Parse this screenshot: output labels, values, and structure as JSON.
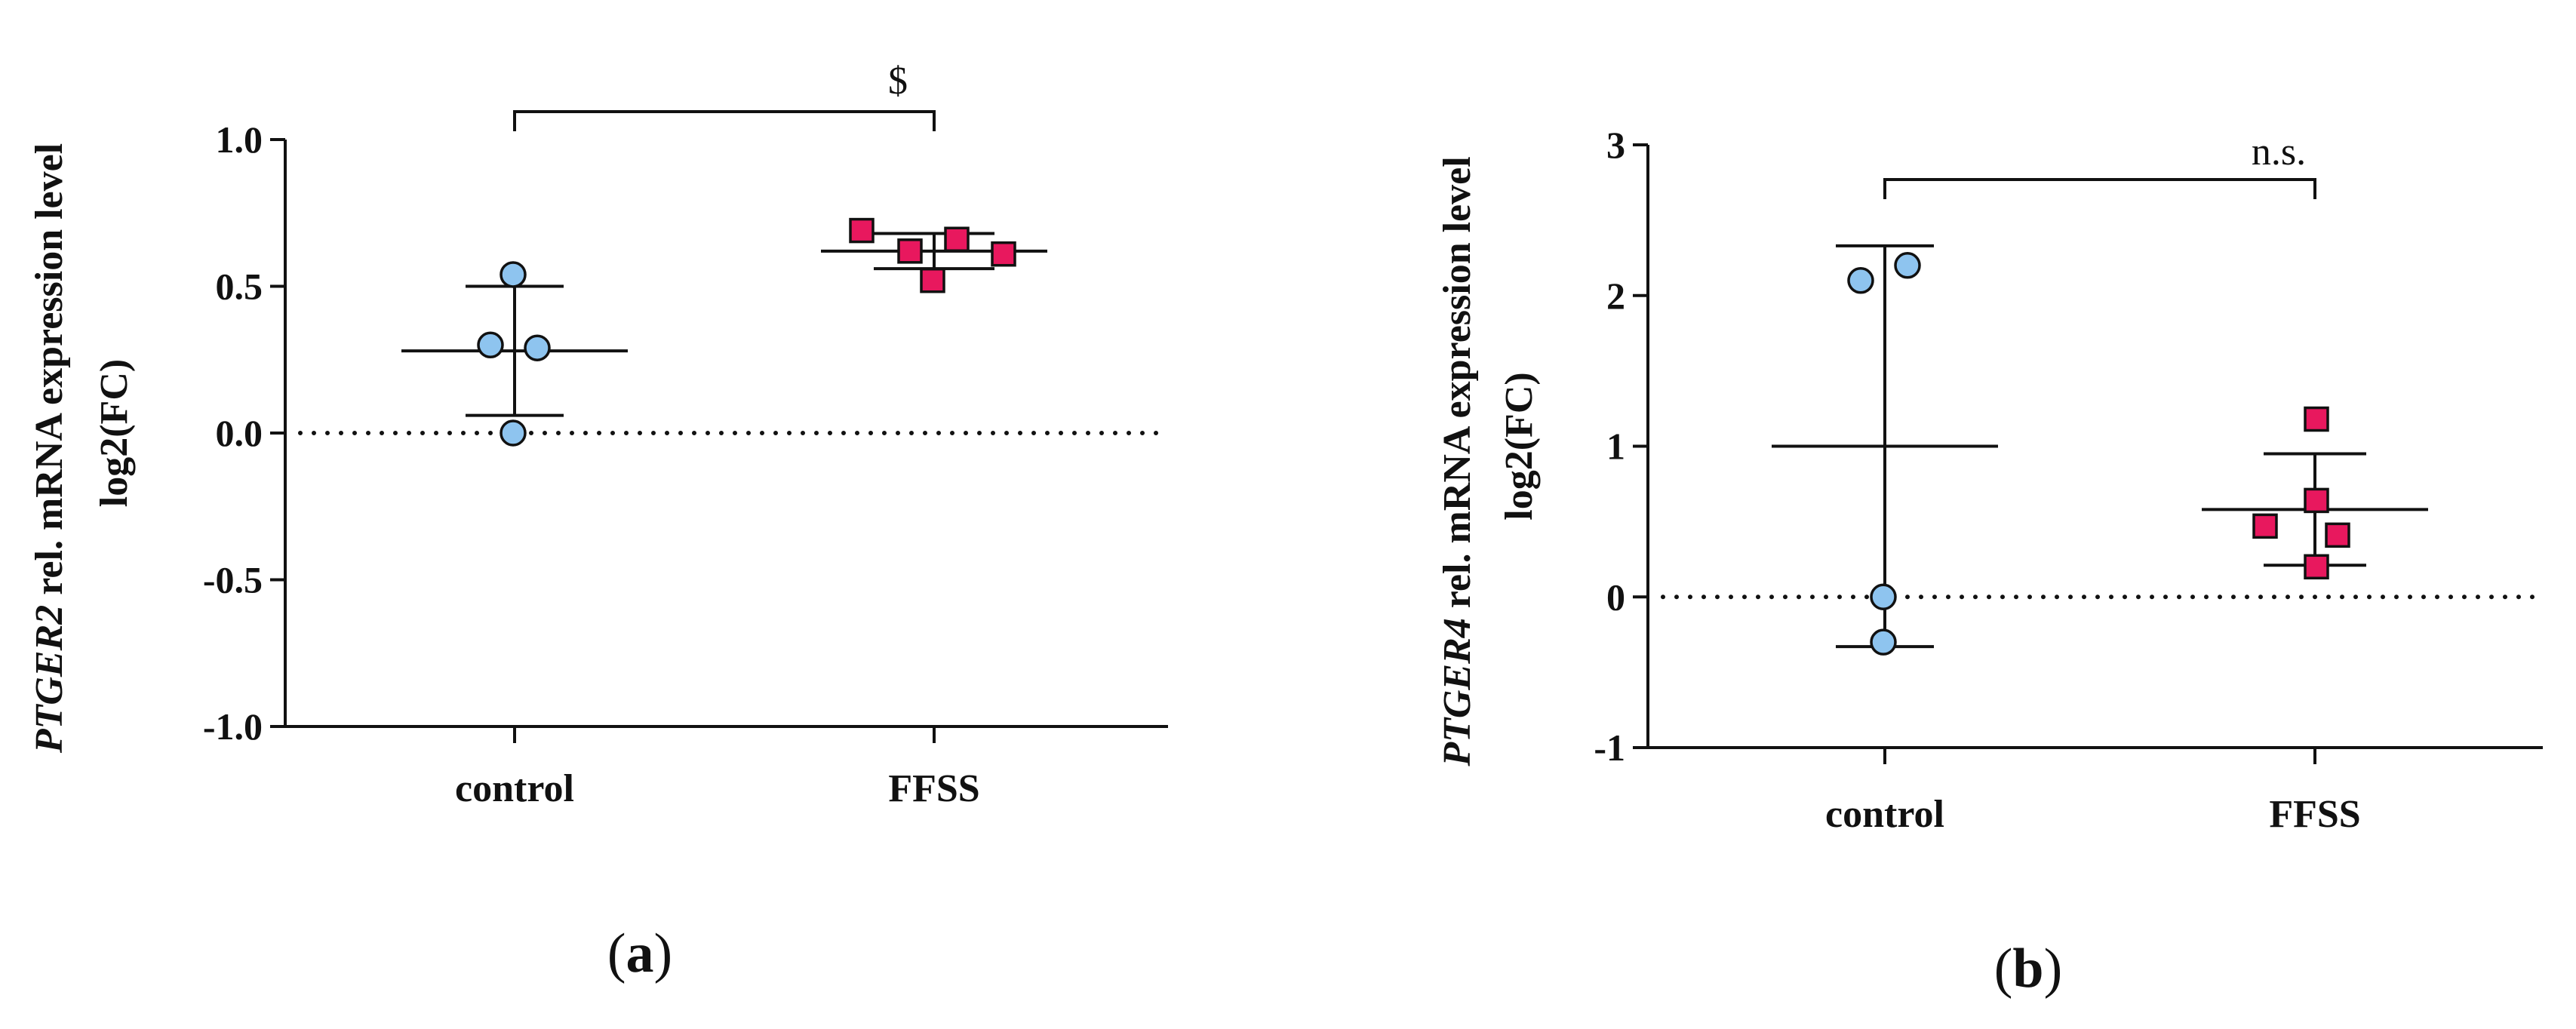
{
  "charts": [
    {
      "chart_data": {
        "type": "scatter",
        "ylabel_gene": "PTGER2",
        "ylabel_rest": " rel. mRNA expression level",
        "ylabel_line2": "log2(FC)",
        "categories": [
          "control",
          "FFSS"
        ],
        "ylim": [
          -1.0,
          1.0
        ],
        "yticks": [
          1.0,
          0.5,
          0.0,
          -0.5,
          -1.0
        ],
        "ytick_labels": [
          "1.0",
          "0.5",
          "0.0",
          "-0.5",
          "-1.0"
        ],
        "reference_line": 0,
        "significance": {
          "groups": [
            "control",
            "FFSS"
          ],
          "label": "$"
        },
        "series": [
          {
            "category": "control",
            "marker": "circle",
            "color": "#8ec4ef",
            "points": [
              0.54,
              0.3,
              0.29,
              0.0
            ],
            "mean": 0.28,
            "sd_upper": 0.5,
            "sd_lower": 0.06
          },
          {
            "category": "FFSS",
            "marker": "square",
            "color": "#e8185e",
            "points": [
              0.69,
              0.62,
              0.66,
              0.52,
              0.61
            ],
            "mean": 0.62,
            "sd_upper": 0.68,
            "sd_lower": 0.56
          }
        ]
      },
      "panel_label": {
        "open": "(",
        "letter": "a",
        "close": ")"
      }
    },
    {
      "chart_data": {
        "type": "scatter",
        "ylabel_gene": "PTGER4",
        "ylabel_rest": " rel. mRNA expression level",
        "ylabel_line2": "log2(FC)",
        "categories": [
          "control",
          "FFSS"
        ],
        "ylim": [
          -1,
          3
        ],
        "yticks": [
          3,
          2,
          1,
          0,
          -1
        ],
        "ytick_labels": [
          "3",
          "2",
          "1",
          "0",
          "-1"
        ],
        "reference_line": 0,
        "significance": {
          "groups": [
            "control",
            "FFSS"
          ],
          "label": "n.s."
        },
        "series": [
          {
            "category": "control",
            "marker": "circle",
            "color": "#8ec4ef",
            "points": [
              2.1,
              2.2,
              0.0,
              -0.3
            ],
            "mean": 1.0,
            "sd_upper": 2.33,
            "sd_lower": -0.33
          },
          {
            "category": "FFSS",
            "marker": "square",
            "color": "#e8185e",
            "points": [
              1.18,
              0.64,
              0.47,
              0.41,
              0.2
            ],
            "mean": 0.58,
            "sd_upper": 0.95,
            "sd_lower": 0.21
          }
        ]
      },
      "panel_label": {
        "open": "(",
        "letter": "b",
        "close": ")"
      }
    }
  ]
}
